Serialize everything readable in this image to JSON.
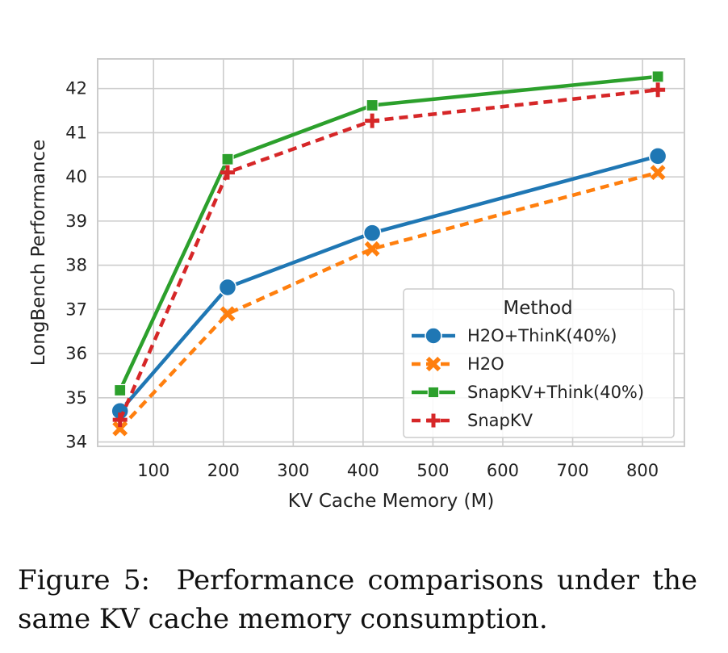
{
  "figure": {
    "caption_label": "Figure 5:",
    "caption_line1": "Performance comparisons under the",
    "caption_line2": "same KV cache memory consumption."
  },
  "chart_data": {
    "type": "line",
    "xlabel": "KV Cache Memory (M)",
    "ylabel": "LongBench Performance",
    "xlim": [
      20,
      860
    ],
    "ylim": [
      33.9,
      42.67
    ],
    "xticks": [
      100,
      200,
      300,
      400,
      500,
      600,
      700,
      800
    ],
    "yticks": [
      34,
      35,
      36,
      37,
      38,
      39,
      40,
      41,
      42
    ],
    "grid": true,
    "legend": {
      "title": "Method",
      "placement": "lower-right"
    },
    "series": [
      {
        "name": "H2O+ThinK(40%)",
        "color": "#1f77b4",
        "marker": "circle",
        "dash": "solid",
        "x": [
          52,
          206,
          413,
          822
        ],
        "y": [
          34.7,
          37.5,
          38.73,
          40.47
        ]
      },
      {
        "name": "H2O",
        "color": "#ff7f0e",
        "marker": "x",
        "dash": "dashed",
        "x": [
          52,
          206,
          413,
          822
        ],
        "y": [
          34.3,
          36.9,
          38.37,
          40.1
        ]
      },
      {
        "name": "SnapKV+Think(40%)",
        "color": "#2ca02c",
        "marker": "square",
        "dash": "solid",
        "x": [
          52,
          206,
          413,
          822
        ],
        "y": [
          35.17,
          40.4,
          41.62,
          42.27
        ]
      },
      {
        "name": "SnapKV",
        "color": "#d62728",
        "marker": "plus",
        "dash": "dashed",
        "x": [
          52,
          206,
          413,
          822
        ],
        "y": [
          34.5,
          40.1,
          41.27,
          41.97
        ]
      }
    ]
  }
}
